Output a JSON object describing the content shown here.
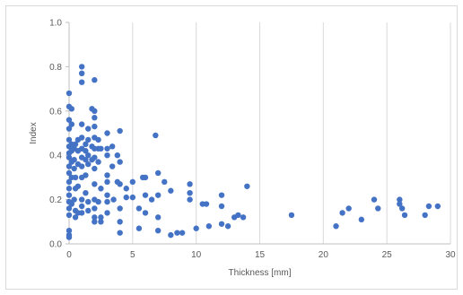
{
  "chart_data": {
    "type": "scatter",
    "title": "",
    "xlabel": "Thickness [mm]",
    "ylabel": "Index",
    "xlim": [
      0,
      30
    ],
    "ylim": [
      0,
      1.0
    ],
    "x_ticks": [
      "0",
      "5",
      "10",
      "15",
      "20",
      "25",
      "30"
    ],
    "y_ticks": [
      "0.0",
      "0.2",
      "0.4",
      "0.6",
      "0.8",
      "1.0"
    ],
    "x_tick_values": [
      0,
      5,
      10,
      15,
      20,
      25,
      30
    ],
    "y_tick_values": [
      0,
      0.2,
      0.4,
      0.6,
      0.8,
      1.0
    ],
    "grid": "vertical",
    "legend": "none",
    "marker_color": "#4472c4",
    "points": [
      [
        0.0,
        0.68
      ],
      [
        0.0,
        0.62
      ],
      [
        0.0,
        0.56
      ],
      [
        0.0,
        0.52
      ],
      [
        0.0,
        0.47
      ],
      [
        0.0,
        0.44
      ],
      [
        0.0,
        0.41
      ],
      [
        0.0,
        0.39
      ],
      [
        0.0,
        0.35
      ],
      [
        0.0,
        0.32
      ],
      [
        0.0,
        0.28
      ],
      [
        0.0,
        0.25
      ],
      [
        0.0,
        0.22
      ],
      [
        0.0,
        0.19
      ],
      [
        0.0,
        0.16
      ],
      [
        0.0,
        0.13
      ],
      [
        0.0,
        0.06
      ],
      [
        0.0,
        0.04
      ],
      [
        0.0,
        0.03
      ],
      [
        0.2,
        0.61
      ],
      [
        0.2,
        0.54
      ],
      [
        0.2,
        0.45
      ],
      [
        0.2,
        0.42
      ],
      [
        0.2,
        0.37
      ],
      [
        0.2,
        0.3
      ],
      [
        0.2,
        0.18
      ],
      [
        0.4,
        0.43
      ],
      [
        0.4,
        0.38
      ],
      [
        0.4,
        0.34
      ],
      [
        0.4,
        0.2
      ],
      [
        0.5,
        0.45
      ],
      [
        0.5,
        0.3
      ],
      [
        0.5,
        0.25
      ],
      [
        0.5,
        0.15
      ],
      [
        0.5,
        0.12
      ],
      [
        0.7,
        0.47
      ],
      [
        0.7,
        0.42
      ],
      [
        0.7,
        0.36
      ],
      [
        0.7,
        0.26
      ],
      [
        0.7,
        0.14
      ],
      [
        1.0,
        0.8
      ],
      [
        1.0,
        0.77
      ],
      [
        1.0,
        0.73
      ],
      [
        1.0,
        0.54
      ],
      [
        1.0,
        0.48
      ],
      [
        1.0,
        0.43
      ],
      [
        1.0,
        0.39
      ],
      [
        1.0,
        0.35
      ],
      [
        1.0,
        0.3
      ],
      [
        1.0,
        0.2
      ],
      [
        1.0,
        0.17
      ],
      [
        1.0,
        0.14
      ],
      [
        1.3,
        0.45
      ],
      [
        1.3,
        0.42
      ],
      [
        1.3,
        0.38
      ],
      [
        1.3,
        0.31
      ],
      [
        1.3,
        0.23
      ],
      [
        1.5,
        0.52
      ],
      [
        1.5,
        0.47
      ],
      [
        1.5,
        0.4
      ],
      [
        1.5,
        0.36
      ],
      [
        1.5,
        0.19
      ],
      [
        1.5,
        0.15
      ],
      [
        1.8,
        0.61
      ],
      [
        1.8,
        0.44
      ],
      [
        1.8,
        0.38
      ],
      [
        2.0,
        0.74
      ],
      [
        2.0,
        0.6
      ],
      [
        2.0,
        0.57
      ],
      [
        2.0,
        0.53
      ],
      [
        2.0,
        0.48
      ],
      [
        2.0,
        0.43
      ],
      [
        2.0,
        0.39
      ],
      [
        2.0,
        0.34
      ],
      [
        2.0,
        0.27
      ],
      [
        2.0,
        0.2
      ],
      [
        2.0,
        0.16
      ],
      [
        2.0,
        0.12
      ],
      [
        2.0,
        0.1
      ],
      [
        2.3,
        0.47
      ],
      [
        2.3,
        0.43
      ],
      [
        2.3,
        0.37
      ],
      [
        2.3,
        0.19
      ],
      [
        2.5,
        0.43
      ],
      [
        2.5,
        0.25
      ],
      [
        2.5,
        0.12
      ],
      [
        2.5,
        0.1
      ],
      [
        3.0,
        0.5
      ],
      [
        3.0,
        0.43
      ],
      [
        3.0,
        0.4
      ],
      [
        3.0,
        0.31
      ],
      [
        3.0,
        0.28
      ],
      [
        3.0,
        0.22
      ],
      [
        3.0,
        0.19
      ],
      [
        3.0,
        0.14
      ],
      [
        3.4,
        0.44
      ],
      [
        3.4,
        0.35
      ],
      [
        3.5,
        0.2
      ],
      [
        3.8,
        0.4
      ],
      [
        3.8,
        0.28
      ],
      [
        4.0,
        0.51
      ],
      [
        4.0,
        0.37
      ],
      [
        4.0,
        0.27
      ],
      [
        4.0,
        0.16
      ],
      [
        4.0,
        0.1
      ],
      [
        4.0,
        0.05
      ],
      [
        4.5,
        0.25
      ],
      [
        4.5,
        0.21
      ],
      [
        5.0,
        0.21
      ],
      [
        5.0,
        0.28
      ],
      [
        5.5,
        0.16
      ],
      [
        5.5,
        0.07
      ],
      [
        5.8,
        0.3
      ],
      [
        6.0,
        0.3
      ],
      [
        6.0,
        0.22
      ],
      [
        6.0,
        0.14
      ],
      [
        6.5,
        0.2
      ],
      [
        6.8,
        0.49
      ],
      [
        7.0,
        0.32
      ],
      [
        7.0,
        0.22
      ],
      [
        7.0,
        0.12
      ],
      [
        7.0,
        0.06
      ],
      [
        7.5,
        0.28
      ],
      [
        8.0,
        0.24
      ],
      [
        8.0,
        0.04
      ],
      [
        8.5,
        0.05
      ],
      [
        8.9,
        0.05
      ],
      [
        9.5,
        0.27
      ],
      [
        9.5,
        0.23
      ],
      [
        9.5,
        0.2
      ],
      [
        10.0,
        0.07
      ],
      [
        10.5,
        0.18
      ],
      [
        10.8,
        0.18
      ],
      [
        11.0,
        0.08
      ],
      [
        12.0,
        0.22
      ],
      [
        12.0,
        0.17
      ],
      [
        12.0,
        0.09
      ],
      [
        12.5,
        0.08
      ],
      [
        13.0,
        0.12
      ],
      [
        13.3,
        0.13
      ],
      [
        13.7,
        0.12
      ],
      [
        14.0,
        0.26
      ],
      [
        17.5,
        0.13
      ],
      [
        21.0,
        0.08
      ],
      [
        21.5,
        0.14
      ],
      [
        22.0,
        0.16
      ],
      [
        23.0,
        0.11
      ],
      [
        24.0,
        0.2
      ],
      [
        24.3,
        0.16
      ],
      [
        26.0,
        0.2
      ],
      [
        26.0,
        0.18
      ],
      [
        26.2,
        0.16
      ],
      [
        26.4,
        0.13
      ],
      [
        28.0,
        0.13
      ],
      [
        28.3,
        0.17
      ],
      [
        29.0,
        0.17
      ]
    ]
  }
}
